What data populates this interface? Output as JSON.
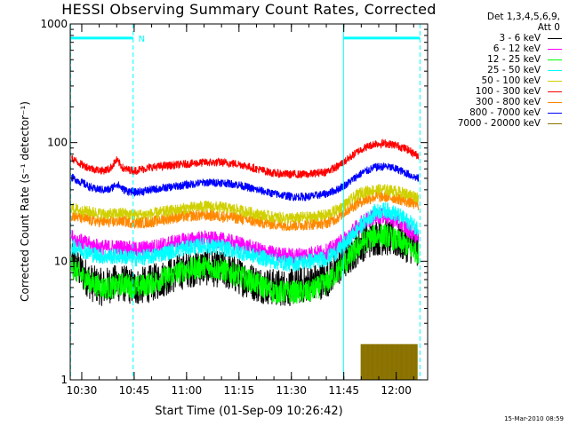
{
  "chart_data": {
    "type": "line",
    "title": "HESSI Observing Summary Count Rates, Corrected",
    "xlabel": "Start Time (01-Sep-09 10:26:42)",
    "ylabel": "Corrected Count Rate (s⁻¹ detector⁻¹)",
    "yscale": "log",
    "ylim": [
      1,
      1000
    ],
    "xlim_min": [
      26.7,
      129
    ],
    "x_unit": "minutes after 10:00 UT",
    "xticks": [
      {
        "min": 30,
        "label": "10:30"
      },
      {
        "min": 45,
        "label": "10:45"
      },
      {
        "min": 60,
        "label": "11:00"
      },
      {
        "min": 75,
        "label": "11:15"
      },
      {
        "min": 90,
        "label": "11:30"
      },
      {
        "min": 105,
        "label": "11:45"
      },
      {
        "min": 120,
        "label": "12:00"
      }
    ],
    "yticks": [
      {
        "value": 1,
        "label": "1"
      },
      {
        "value": 10,
        "label": "10"
      },
      {
        "value": 100,
        "label": "100"
      },
      {
        "value": 1000,
        "label": "1000"
      }
    ],
    "legend_header": [
      "Det 1,3,4,5,6,9,",
      "Att 0"
    ],
    "legend_position": "right",
    "series": [
      {
        "name": "3 - 6 keV",
        "color": "#000000",
        "noise": 0.16,
        "x": [
          27,
          30,
          33,
          36,
          39,
          42,
          45,
          50,
          55,
          60,
          65,
          70,
          75,
          80,
          85,
          90,
          95,
          100,
          103,
          106,
          110,
          114,
          117,
          120,
          123,
          126
        ],
        "values": [
          10,
          8,
          6.5,
          6,
          6.5,
          6.5,
          6,
          6.5,
          7.5,
          8.5,
          9,
          8.5,
          7.5,
          6.5,
          6,
          6,
          6.5,
          7,
          8.5,
          10.5,
          14,
          16,
          16,
          15,
          14,
          13
        ]
      },
      {
        "name": "6 - 12 keV",
        "color": "#ff00ff",
        "noise": 0.07,
        "x": [
          27,
          30,
          33,
          36,
          39,
          42,
          45,
          50,
          55,
          60,
          65,
          70,
          75,
          80,
          85,
          90,
          95,
          100,
          103,
          106,
          110,
          114,
          117,
          120,
          123,
          126
        ],
        "values": [
          16,
          14.5,
          13.5,
          13,
          13,
          13,
          12.5,
          13,
          14,
          15,
          15.5,
          15,
          14,
          12.5,
          11.5,
          11,
          11.5,
          12,
          13.5,
          16,
          21,
          24,
          24,
          22,
          19,
          16
        ]
      },
      {
        "name": "12 - 25 keV",
        "color": "#00ff00",
        "noise": 0.1,
        "x": [
          27,
          30,
          33,
          36,
          39,
          42,
          45,
          50,
          55,
          60,
          65,
          70,
          75,
          80,
          85,
          90,
          95,
          100,
          103,
          106,
          110,
          114,
          117,
          120,
          123,
          126
        ],
        "values": [
          9,
          7.5,
          6.5,
          6,
          6,
          6.5,
          6,
          6.5,
          7.5,
          8.5,
          9,
          8.5,
          7.5,
          6.5,
          5.5,
          5.5,
          5.5,
          6.5,
          8,
          10,
          14,
          16.5,
          16.5,
          15,
          13.5,
          12
        ]
      },
      {
        "name": "25 - 50 keV",
        "color": "#00ffff",
        "noise": 0.07,
        "x": [
          27,
          30,
          33,
          36,
          39,
          42,
          45,
          50,
          55,
          60,
          65,
          70,
          75,
          80,
          85,
          90,
          95,
          100,
          103,
          106,
          110,
          114,
          117,
          120,
          123,
          126
        ],
        "values": [
          13.5,
          12.5,
          11.5,
          11,
          11,
          11,
          10.5,
          11,
          12,
          13,
          13.5,
          13,
          12,
          11,
          10,
          9.5,
          10,
          10.5,
          12,
          14.5,
          20,
          26,
          27,
          25,
          22,
          19
        ]
      },
      {
        "name": "50 - 100 keV",
        "color": "#d0d000",
        "noise": 0.05,
        "x": [
          27,
          30,
          33,
          36,
          39,
          42,
          45,
          50,
          55,
          60,
          65,
          70,
          75,
          80,
          85,
          90,
          95,
          100,
          103,
          106,
          110,
          114,
          117,
          120,
          123,
          126
        ],
        "values": [
          28,
          26.5,
          26,
          25,
          25,
          25.5,
          24.5,
          25,
          26.5,
          28,
          29,
          28.5,
          27,
          25,
          23.5,
          23,
          23.5,
          24.5,
          27,
          31,
          38,
          40,
          40,
          39,
          37,
          35
        ]
      },
      {
        "name": "100 - 300 keV",
        "color": "#ff0000",
        "noise": 0.035,
        "x": [
          27,
          30,
          33,
          36,
          38,
          40,
          42,
          45,
          50,
          55,
          60,
          65,
          70,
          75,
          80,
          85,
          90,
          95,
          100,
          103,
          106,
          110,
          114,
          117,
          120,
          123,
          126
        ],
        "values": [
          74,
          65,
          60,
          58,
          60,
          71,
          60,
          58,
          62,
          64,
          66,
          68,
          68,
          66,
          60,
          55,
          54,
          54,
          57,
          62,
          72,
          88,
          98,
          98,
          95,
          88,
          78
        ]
      },
      {
        "name": "300 - 800 keV",
        "color": "#ff8800",
        "noise": 0.05,
        "x": [
          27,
          30,
          33,
          36,
          39,
          42,
          45,
          50,
          55,
          60,
          65,
          70,
          75,
          80,
          85,
          90,
          95,
          100,
          103,
          106,
          110,
          114,
          117,
          120,
          123,
          126
        ],
        "values": [
          24.5,
          23,
          22,
          21.5,
          21.5,
          22,
          21,
          21.5,
          23,
          24,
          24.5,
          24,
          23,
          21.5,
          20.5,
          20,
          20.5,
          21,
          23,
          27,
          32,
          35,
          35,
          34,
          32,
          30
        ]
      },
      {
        "name": "800 - 7000 keV",
        "color": "#0000ff",
        "noise": 0.035,
        "x": [
          27,
          30,
          33,
          36,
          38,
          40,
          42,
          45,
          50,
          55,
          60,
          65,
          70,
          75,
          80,
          85,
          90,
          95,
          100,
          103,
          106,
          110,
          114,
          117,
          120,
          123,
          126
        ],
        "values": [
          51,
          46,
          41,
          40,
          40,
          45,
          40,
          38,
          40,
          42,
          44,
          46,
          46,
          44,
          40,
          37,
          35,
          35,
          37,
          40,
          45,
          55,
          62,
          63,
          60,
          55,
          50
        ]
      },
      {
        "name": "7000 - 20000 keV",
        "color": "#8b7300",
        "x": [
          110,
          126
        ],
        "range": [
          1,
          2
        ],
        "style": "fill"
      }
    ],
    "annotations": [
      {
        "type": "vline",
        "x": 26.8,
        "style": "dashed",
        "color": "#00ffff"
      },
      {
        "type": "vline",
        "x": 44.7,
        "style": "dashed",
        "color": "#00ffff"
      },
      {
        "type": "vline",
        "x": 104.9,
        "style": "solid",
        "color": "#00ffff"
      },
      {
        "type": "vline",
        "x": 126.8,
        "style": "dashed",
        "color": "#00ffff"
      },
      {
        "type": "hbar",
        "y": 760,
        "from": 26.8,
        "to": 44.7,
        "color": "#00ffff"
      },
      {
        "type": "hbar",
        "y": 760,
        "from": 104.9,
        "to": 126.8,
        "color": "#00ffff"
      },
      {
        "type": "text",
        "x": 46.2,
        "y": 760,
        "text": "N",
        "color": "#00ffff"
      }
    ]
  },
  "timestamp": "15-Mar-2010 08:59"
}
